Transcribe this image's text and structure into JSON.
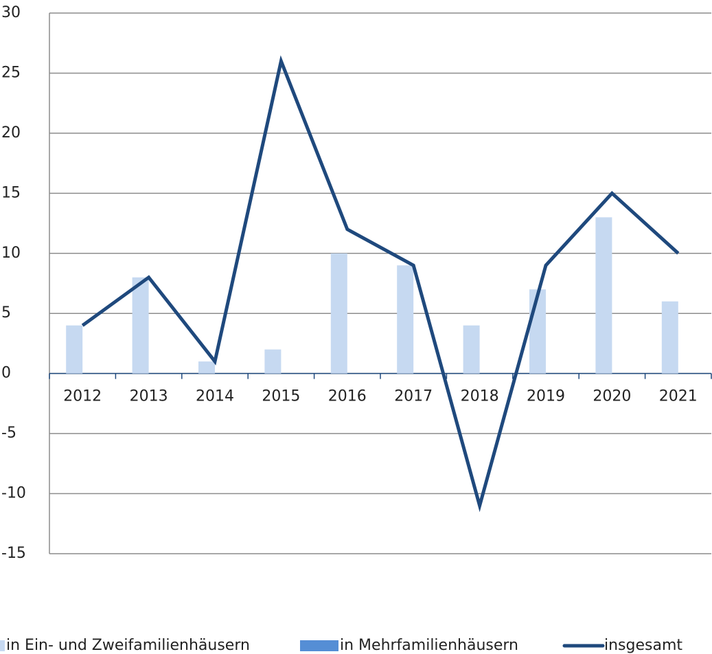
{
  "chart_data": {
    "type": "bar",
    "categories": [
      "2012",
      "2013",
      "2014",
      "2015",
      "2016",
      "2017",
      "2018",
      "2019",
      "2020",
      "2021"
    ],
    "series": [
      {
        "name": "in Ein- und Zweifamilienhäusern",
        "type": "bar",
        "color": "#c6d9f1",
        "values": [
          4,
          8,
          1,
          2,
          10,
          9,
          4,
          7,
          13,
          6
        ]
      },
      {
        "name": "in Mehrfamilienhäusern",
        "type": "bar",
        "color": "#558ed5",
        "values": [
          null,
          null,
          null,
          null,
          null,
          null,
          null,
          null,
          null,
          null
        ]
      },
      {
        "name": "insgesamt",
        "type": "line",
        "color": "#1f497d",
        "values": [
          4,
          8,
          1,
          26,
          12,
          9,
          -11,
          9,
          15,
          10
        ]
      }
    ],
    "ylim": [
      -15,
      30
    ],
    "yticks": [
      -15,
      -10,
      -5,
      0,
      5,
      10,
      15,
      20,
      25,
      30
    ],
    "grid": true,
    "legend": "bottom"
  }
}
